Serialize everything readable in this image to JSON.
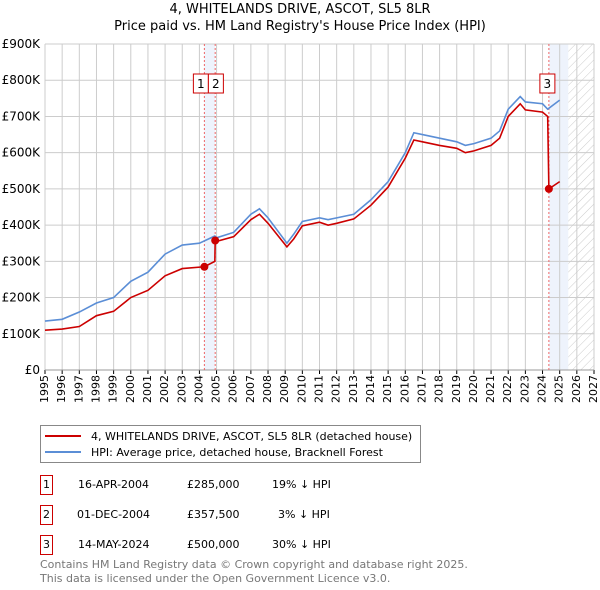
{
  "chart_data": {
    "type": "line",
    "title": "4, WHITELANDS DRIVE, ASCOT, SL5 8LR",
    "subtitle": "Price paid vs. HM Land Registry's House Price Index (HPI)",
    "xlim": [
      1995,
      2027
    ],
    "ylim": [
      0,
      900000
    ],
    "x_ticks": [
      "1995",
      "1996",
      "1997",
      "1998",
      "1999",
      "2000",
      "2001",
      "2002",
      "2003",
      "2004",
      "2005",
      "2006",
      "2007",
      "2008",
      "2009",
      "2010",
      "2011",
      "2012",
      "2013",
      "2014",
      "2015",
      "2016",
      "2017",
      "2018",
      "2019",
      "2020",
      "2021",
      "2022",
      "2023",
      "2024",
      "2025",
      "2026",
      "2027"
    ],
    "y_ticks": [
      "£0",
      "£100K",
      "£200K",
      "£300K",
      "£400K",
      "£500K",
      "£600K",
      "£700K",
      "£800K",
      "£900K"
    ],
    "grid": true,
    "forecast_hatch_from": 2025.5,
    "series": [
      {
        "name": "4, WHITELANDS DRIVE, ASCOT, SL5 8LR (detached house)",
        "color": "#cc0000",
        "x": [
          1995,
          1996,
          1997,
          1998,
          1999,
          2000,
          2001,
          2002,
          2003,
          2004.29,
          2004.9,
          2004.92,
          2005,
          2006,
          2007,
          2007.5,
          2008,
          2009.1,
          2009.5,
          2010,
          2011,
          2011.5,
          2012,
          2013,
          2014,
          2015,
          2015.5,
          2016,
          2016.5,
          2017,
          2018,
          2019,
          2019.5,
          2020,
          2021,
          2021.5,
          2022,
          2022.7,
          2023,
          2024,
          2024.3,
          2024.37,
          2025
        ],
        "y": [
          110000,
          113000,
          120000,
          150000,
          162000,
          200000,
          220000,
          260000,
          280000,
          285000,
          300000,
          357500,
          355000,
          368000,
          415000,
          430000,
          405000,
          340000,
          362000,
          398000,
          408000,
          400000,
          405000,
          417000,
          455000,
          505000,
          545000,
          585000,
          635000,
          630000,
          620000,
          612000,
          600000,
          605000,
          620000,
          640000,
          700000,
          735000,
          718000,
          712000,
          700000,
          500000,
          520000
        ]
      },
      {
        "name": "HPI: Average price, detached house, Bracknell Forest",
        "color": "#5b8ed6",
        "x": [
          1995,
          1996,
          1997,
          1998,
          1999,
          2000,
          2001,
          2002,
          2003,
          2004,
          2004.9,
          2005,
          2006,
          2007,
          2007.5,
          2008,
          2009.1,
          2009.5,
          2010,
          2011,
          2011.5,
          2012,
          2013,
          2014,
          2015,
          2015.5,
          2016,
          2016.5,
          2017,
          2018,
          2019,
          2019.5,
          2020,
          2021,
          2021.5,
          2022,
          2022.7,
          2023,
          2024,
          2024.3,
          2025
        ],
        "y": [
          135000,
          140000,
          160000,
          185000,
          200000,
          245000,
          270000,
          320000,
          345000,
          350000,
          370000,
          365000,
          380000,
          430000,
          445000,
          420000,
          350000,
          375000,
          410000,
          420000,
          415000,
          420000,
          430000,
          470000,
          520000,
          560000,
          600000,
          655000,
          650000,
          640000,
          630000,
          620000,
          625000,
          640000,
          660000,
          720000,
          755000,
          740000,
          735000,
          720000,
          745000
        ]
      }
    ],
    "sales": [
      {
        "label": "1",
        "x": 2004.29,
        "y": 285000
      },
      {
        "label": "2",
        "x": 2004.92,
        "y": 357500
      },
      {
        "label": "3",
        "x": 2024.37,
        "y": 500000
      }
    ]
  },
  "legend": {
    "property": "4, WHITELANDS DRIVE, ASCOT, SL5 8LR (detached house)",
    "hpi": "HPI: Average price, detached house, Bracknell Forest"
  },
  "transactions": [
    {
      "num": "1",
      "date": "16-APR-2004",
      "price": "£285,000",
      "diff": "19% ↓ HPI"
    },
    {
      "num": "2",
      "date": "01-DEC-2004",
      "price": "£357,500",
      "diff": "3% ↓ HPI"
    },
    {
      "num": "3",
      "date": "14-MAY-2024",
      "price": "£500,000",
      "diff": "30% ↓ HPI"
    }
  ],
  "footer": {
    "line1": "Contains HM Land Registry data © Crown copyright and database right 2025.",
    "line2": "This data is licensed under the Open Government Licence v3.0."
  }
}
